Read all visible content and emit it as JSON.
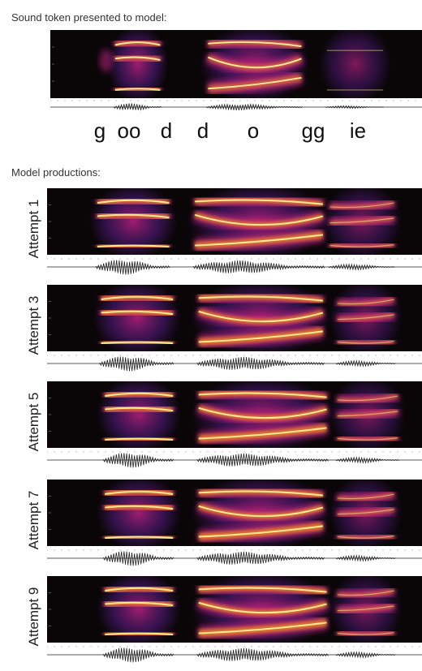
{
  "headings": {
    "top": "Sound token presented to model:",
    "productions": "Model productions:"
  },
  "phonemes": [
    "g",
    "oo",
    "d",
    "d",
    "o",
    "gg",
    "ie"
  ],
  "attempts": [
    {
      "label": "Attempt 1"
    },
    {
      "label": "Attempt 3"
    },
    {
      "label": "Attempt 5"
    },
    {
      "label": "Attempt 7"
    },
    {
      "label": "Attempt 9"
    }
  ],
  "colors": {
    "spectrogram_background": "#0a0608",
    "formant_core": "#fff6a0",
    "formant_glow": "#f08a1a",
    "energy_mid": "#b0207a",
    "energy_low": "#4a1870",
    "waveform": "#222222"
  }
}
